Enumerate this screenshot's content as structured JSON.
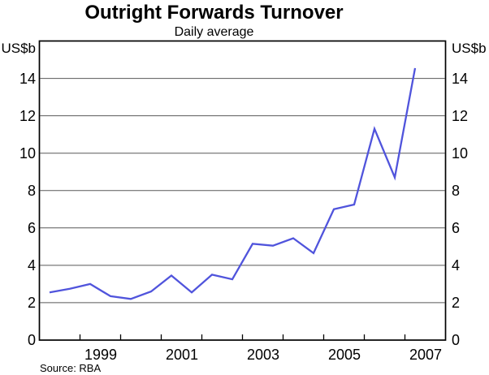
{
  "page": {
    "title": "Outright Forwards Turnover",
    "subtitle": "Daily average",
    "unit_label_left": "US$b",
    "unit_label_right": "US$b",
    "source_note": "Source: RBA"
  },
  "chart_data": {
    "type": "line",
    "title": "Outright Forwards Turnover",
    "subtitle": "Daily average",
    "ylabel": "US$b",
    "source": "Source: RBA",
    "ylim": [
      0,
      16
    ],
    "yticks": [
      0,
      2,
      4,
      6,
      8,
      10,
      12,
      14
    ],
    "xlim": [
      1998,
      2008
    ],
    "xtick_years": [
      1999,
      2000,
      2001,
      2002,
      2003,
      2004,
      2005,
      2006,
      2007
    ],
    "x_labels": [
      {
        "label": "1999",
        "x": 1999.5
      },
      {
        "label": "2001",
        "x": 2001.5
      },
      {
        "label": "2003",
        "x": 2003.5
      },
      {
        "label": "2005",
        "x": 2005.5
      },
      {
        "label": "2007",
        "x": 2007.5
      }
    ],
    "grid": "horizontal",
    "legend": "none",
    "line_color": "#5054dc",
    "grid_color": "#595959",
    "axis_color": "#000000",
    "series": [
      {
        "name": "Outright forwards",
        "x": [
          1998.25,
          1998.75,
          1999.25,
          1999.75,
          2000.25,
          2000.75,
          2001.25,
          2001.75,
          2002.25,
          2002.75,
          2003.25,
          2003.75,
          2004.25,
          2004.75,
          2005.25,
          2005.75,
          2006.25,
          2006.75,
          2007.25
        ],
        "values": [
          2.55,
          2.75,
          3.0,
          2.35,
          2.2,
          2.6,
          3.45,
          2.55,
          3.5,
          3.25,
          5.15,
          5.05,
          5.45,
          4.65,
          7.0,
          7.25,
          11.3,
          8.7,
          14.55
        ]
      }
    ]
  }
}
